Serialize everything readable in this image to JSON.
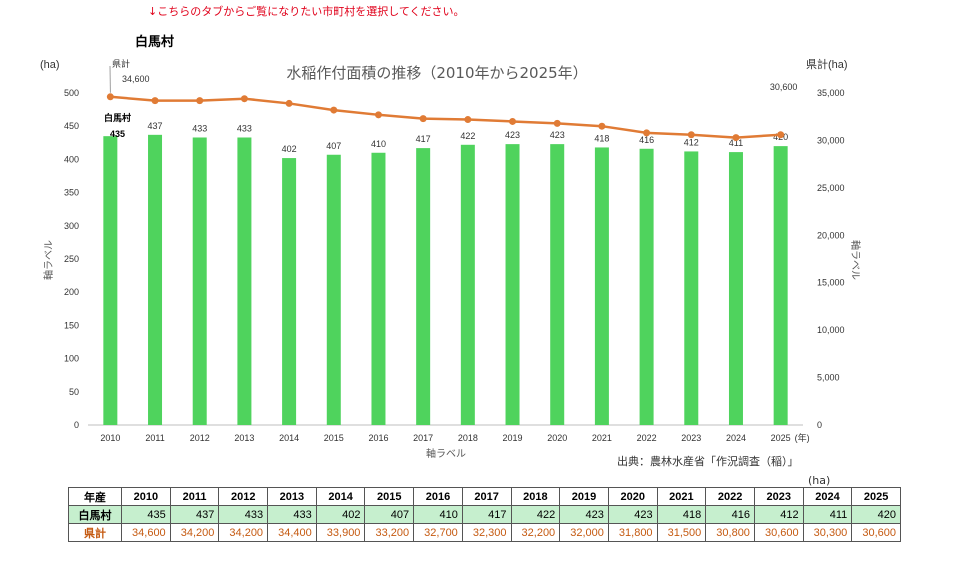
{
  "note": "↓こちらのタブからご覧になりたい市町村を選択してください。",
  "municipality": "白馬村",
  "source": "出典：農林水産省「作況調査（稲）」",
  "table_unit": "(ha)",
  "colors": {
    "bar": "#4fd35d",
    "line": "#e07b35",
    "table_muni_bg": "#c6efce",
    "table_pref_text": "#c55a11"
  },
  "chart_data": {
    "type": "bar",
    "title": "水稲作付面積の推移（2010年から2025年）",
    "categories": [
      "2010",
      "2011",
      "2012",
      "2013",
      "2014",
      "2015",
      "2016",
      "2017",
      "2018",
      "2019",
      "2020",
      "2021",
      "2022",
      "2023",
      "2024",
      "2025"
    ],
    "x_unit": "(年)",
    "xlabel": "軸ラベル",
    "ylabel_left": "軸ラベル",
    "ylabel_right": "軸ラベル",
    "y_unit_left": "(ha)",
    "y_unit_right": "県計(ha)",
    "ylim_left": [
      0,
      500
    ],
    "yticks_left": [
      0,
      50,
      100,
      150,
      200,
      250,
      300,
      350,
      400,
      450,
      500
    ],
    "ylim_right": [
      0,
      35000
    ],
    "yticks_right": [
      "0",
      "5,000",
      "10,000",
      "15,000",
      "20,000",
      "25,000",
      "30,000",
      "35,000"
    ],
    "series": [
      {
        "name": "白馬村",
        "type": "bar",
        "axis": "left",
        "values": [
          435,
          437,
          433,
          433,
          402,
          407,
          410,
          417,
          422,
          423,
          423,
          418,
          416,
          412,
          411,
          420
        ]
      },
      {
        "name": "県計",
        "type": "line",
        "axis": "right",
        "values": [
          34600,
          34200,
          34200,
          34400,
          33900,
          33200,
          32700,
          32300,
          32200,
          32000,
          31800,
          31500,
          30800,
          30600,
          30300,
          30600
        ]
      }
    ],
    "annotations": [
      {
        "label": "県計",
        "value": "34,600"
      },
      {
        "label": "白馬村",
        "value": "435"
      },
      {
        "value": "30,600"
      }
    ]
  },
  "table": {
    "header_label": "年産",
    "years": [
      "2010",
      "2011",
      "2012",
      "2013",
      "2014",
      "2015",
      "2016",
      "2017",
      "2018",
      "2019",
      "2020",
      "2021",
      "2022",
      "2023",
      "2024",
      "2025"
    ],
    "rows": [
      {
        "label": "白馬村",
        "values": [
          "435",
          "437",
          "433",
          "433",
          "402",
          "407",
          "410",
          "417",
          "422",
          "423",
          "423",
          "418",
          "416",
          "412",
          "411",
          "420"
        ]
      },
      {
        "label": "県計",
        "values": [
          "34,600",
          "34,200",
          "34,200",
          "34,400",
          "33,900",
          "33,200",
          "32,700",
          "32,300",
          "32,200",
          "32,000",
          "31,800",
          "31,500",
          "30,800",
          "30,600",
          "30,300",
          "30,600"
        ]
      }
    ]
  }
}
